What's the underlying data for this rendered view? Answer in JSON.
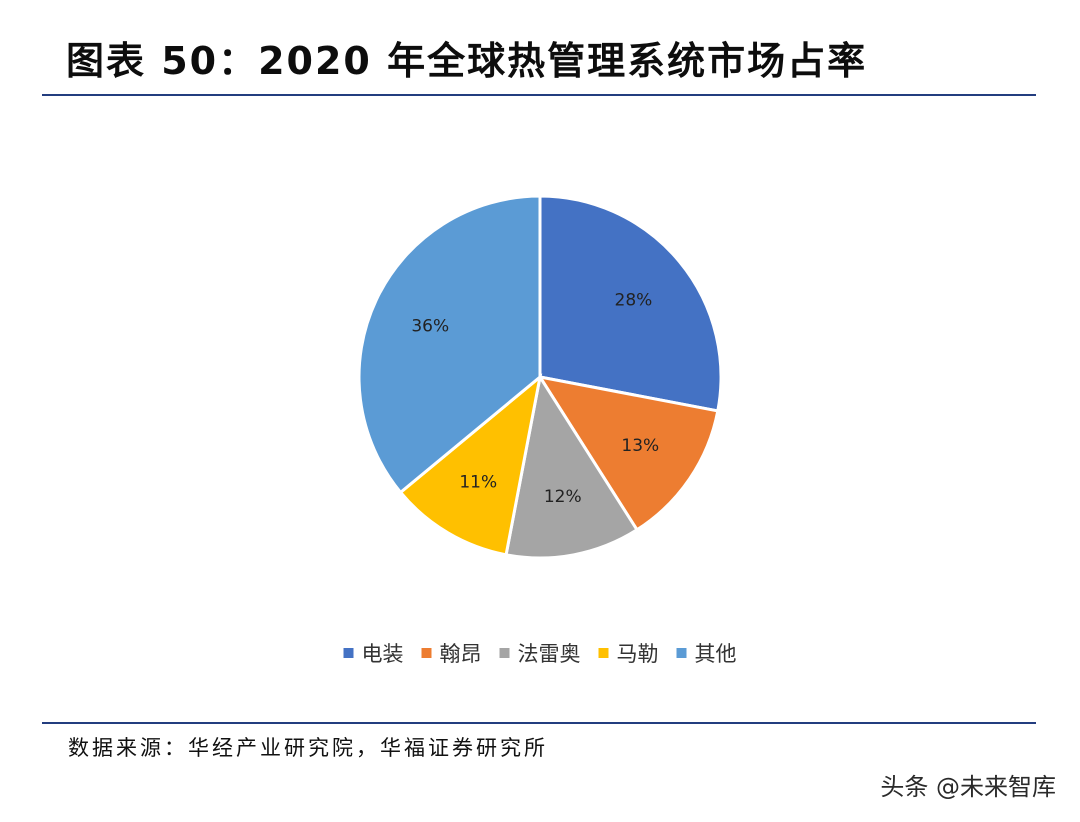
{
  "header": {
    "title": "图表 50：2020 年全球热管理系统市场占率"
  },
  "footer": {
    "source": "数据来源：华经产业研究院，华福证券研究所"
  },
  "watermark": {
    "text": "头条 @未来智库"
  },
  "chart_data": {
    "type": "pie",
    "title": "",
    "categories": [
      "电装",
      "翰昂",
      "法雷奥",
      "马勒",
      "其他"
    ],
    "values": [
      28,
      13,
      12,
      11,
      36
    ],
    "labels": [
      "28%",
      "13%",
      "12%",
      "11%",
      "36%"
    ],
    "colors": [
      "#4472C4",
      "#ED7D31",
      "#A5A5A5",
      "#FFC000",
      "#5B9BD5"
    ],
    "start_angle": "12 o'clock",
    "direction": "clockwise",
    "legend_position": "bottom"
  }
}
